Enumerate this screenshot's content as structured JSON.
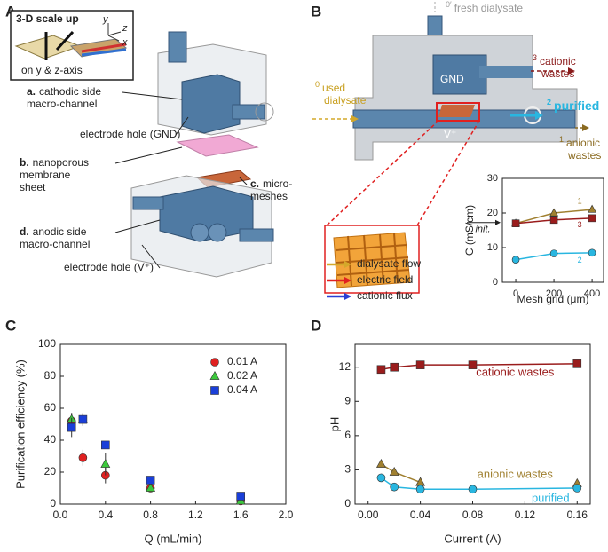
{
  "panel_labels": [
    "A",
    "B",
    "C",
    "D"
  ],
  "panel_a": {
    "inset_title": "3-D scale up",
    "inset_caption": "on y & z-axis",
    "axes": [
      "y",
      "z",
      "x"
    ],
    "labels": [
      {
        "key": "a.",
        "lines": [
          "cathodic side",
          "macro-channel"
        ]
      },
      {
        "key": "",
        "lines": [
          "electrode hole (GND)"
        ]
      },
      {
        "key": "b.",
        "lines": [
          "nanoporous",
          "membrane",
          "sheet"
        ]
      },
      {
        "key": "c.",
        "lines": [
          "micro-",
          "meshes"
        ]
      },
      {
        "key": "d.",
        "lines": [
          "anodic side",
          "macro-channel"
        ]
      },
      {
        "key": "",
        "lines": [
          "electrode hole (V⁺)"
        ]
      }
    ]
  },
  "panel_b": {
    "streams": [
      {
        "mark": "0′",
        "lines": [
          "fresh dialysate"
        ]
      },
      {
        "mark": "3",
        "lines": [
          "cationic",
          "wastes"
        ]
      },
      {
        "mark": "0",
        "lines": [
          "used",
          "dialysate"
        ]
      },
      {
        "mark": "2",
        "lines": [
          "purified"
        ]
      },
      {
        "mark": "1",
        "lines": [
          "anionic",
          "wastes"
        ]
      }
    ],
    "electrodes": [
      "GND",
      "V⁺"
    ],
    "legend": [
      {
        "name": "dialysate flow",
        "color": "#d4a82a"
      },
      {
        "name": "electric field",
        "color": "#e02020"
      },
      {
        "name": "cationic flux",
        "color": "#2a3fd4"
      }
    ]
  },
  "chart_data": [
    {
      "type": "line",
      "xlabel": "Mesh grid (μm)",
      "ylabel": "C (mS/cm)",
      "annotation": "init.",
      "x": [
        0,
        200,
        400
      ],
      "xlim": [
        -70,
        460
      ],
      "xticks": [
        0,
        200,
        400
      ],
      "ylim": [
        0,
        30
      ],
      "yticks": [
        0,
        10,
        20,
        30
      ],
      "series": [
        {
          "name": "1",
          "color": "#a08030",
          "marker": "triangle",
          "values": [
            17,
            20,
            21
          ]
        },
        {
          "name": "3",
          "color": "#9a1c1c",
          "marker": "square",
          "values": [
            17,
            18,
            18.5
          ]
        },
        {
          "name": "2",
          "color": "#29b6e0",
          "marker": "circle",
          "values": [
            6.5,
            8.3,
            8.5
          ]
        }
      ]
    },
    {
      "type": "scatter",
      "xlabel": "Q (mL/min)",
      "ylabel": "Purification efficiency (%)",
      "legend": "upper right",
      "x": [
        0.1,
        0.2,
        0.4,
        0.8,
        1.6
      ],
      "xlim": [
        0,
        2
      ],
      "xticks": [
        {
          "value": 0,
          "label": "0.0"
        },
        0.4,
        0.8,
        1.2,
        1.6,
        {
          "value": 2,
          "label": "2.0"
        }
      ],
      "ylim": [
        0,
        100
      ],
      "yticks": [
        0,
        20,
        40,
        60,
        80,
        100
      ],
      "series": [
        {
          "name": "0.01 A",
          "color": "#e02020",
          "marker": "circle",
          "values": [
            52,
            29,
            18,
            10,
            2
          ],
          "errors": [
            5,
            5,
            5,
            1,
            1
          ]
        },
        {
          "name": "0.02 A",
          "color": "#3cc83c",
          "marker": "triangle",
          "values": [
            53,
            53,
            25,
            10,
            2
          ],
          "errors": [
            4,
            4,
            7,
            1,
            1
          ]
        },
        {
          "name": "0.04 A",
          "color": "#1a3fd8",
          "marker": "square",
          "values": [
            48,
            53,
            37,
            15,
            5
          ],
          "errors": [
            6,
            4,
            1,
            1,
            1
          ]
        }
      ]
    },
    {
      "type": "line",
      "xlabel": "Current (A)",
      "ylabel": "pH",
      "x": [
        0.01,
        0.02,
        0.04,
        0.08,
        0.16
      ],
      "xlim": [
        -0.01,
        0.17
      ],
      "xticks": [
        {
          "value": 0,
          "label": "0.00"
        },
        {
          "value": 0.04,
          "label": "0.04"
        },
        {
          "value": 0.08,
          "label": "0.08"
        },
        {
          "value": 0.12,
          "label": "0.12"
        },
        {
          "value": 0.16,
          "label": "0.16"
        }
      ],
      "ylim": [
        0,
        14
      ],
      "yticks": [
        0,
        3,
        6,
        9,
        12
      ],
      "series": [
        {
          "name": "cationic wastes",
          "color": "#9a1c1c",
          "marker": "square",
          "values": [
            11.8,
            12.0,
            12.2,
            12.2,
            12.3
          ]
        },
        {
          "name": "anionic wastes",
          "color": "#a08030",
          "marker": "triangle",
          "values": [
            3.5,
            2.8,
            1.9,
            null,
            1.8
          ]
        },
        {
          "name": "purified",
          "color": "#29b6e0",
          "marker": "circle",
          "values": [
            2.3,
            1.5,
            1.3,
            1.3,
            1.4
          ]
        }
      ]
    }
  ]
}
